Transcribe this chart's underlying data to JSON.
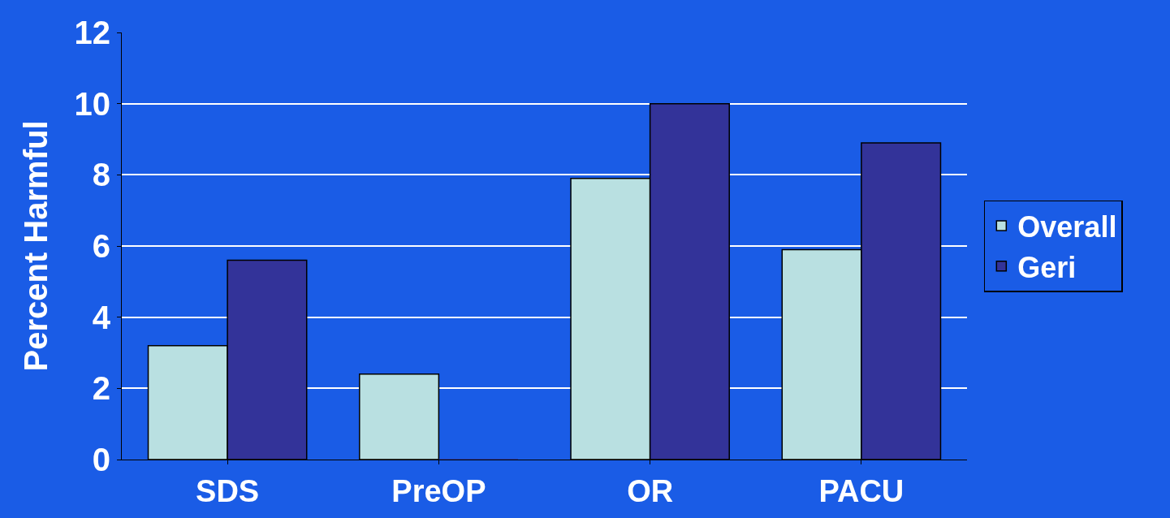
{
  "chart_data": {
    "type": "bar",
    "ylabel": "Percent Harmful",
    "categories": [
      "SDS",
      "PreOP",
      "OR",
      "PACU"
    ],
    "series": [
      {
        "name": "Overall",
        "color": "#b9e0e1",
        "values": [
          3.2,
          2.4,
          7.9,
          5.9
        ]
      },
      {
        "name": "Geri",
        "color": "#333399",
        "values": [
          5.6,
          0,
          10,
          8.9
        ]
      }
    ],
    "ylim": [
      0,
      12
    ],
    "yticks": [
      0,
      2,
      4,
      6,
      8,
      10,
      12
    ],
    "grid": "y",
    "legend": "right"
  }
}
